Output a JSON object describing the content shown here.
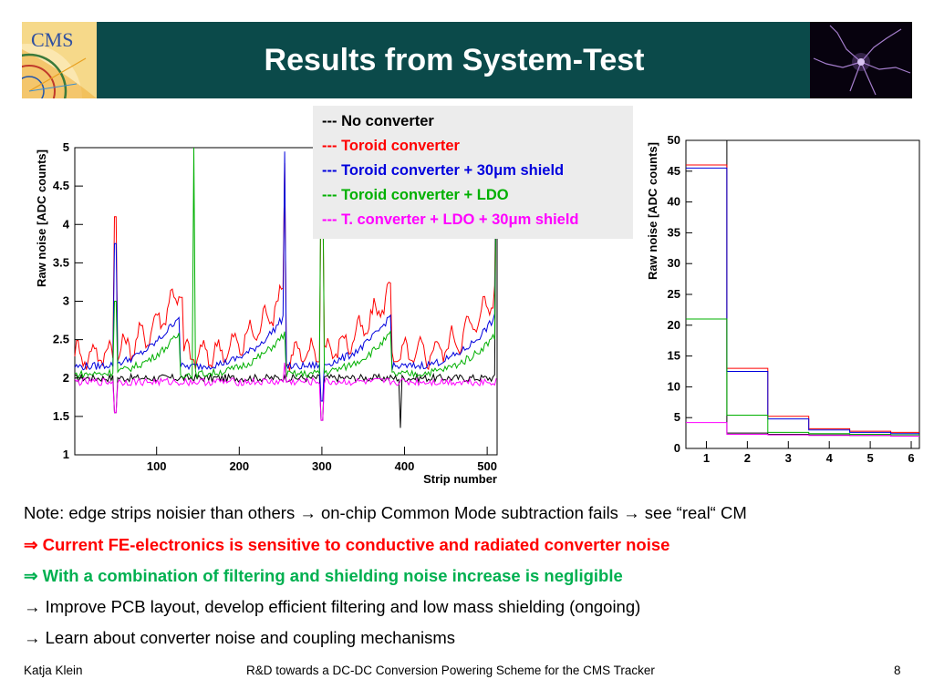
{
  "header": {
    "title": "Results from System-Test",
    "logo_text": "CMS",
    "bar_color": "#0b4a4a"
  },
  "legend": {
    "items": [
      {
        "label": "--- No converter",
        "color": "#000000"
      },
      {
        "label": "--- Toroid converter",
        "color": "#ff0000"
      },
      {
        "label": "--- Toroid converter + 30μm shield",
        "color": "#0000dd"
      },
      {
        "label": "--- Toroid converter + LDO",
        "color": "#00b000"
      },
      {
        "label": "--- T. converter + LDO + 30μm shield",
        "color": "#ff00ff"
      }
    ]
  },
  "chart_data": [
    {
      "type": "line",
      "xlabel": "Strip number",
      "ylabel": "Raw noise [ADC counts]",
      "xlim": [
        1,
        512
      ],
      "ylim": [
        1,
        5
      ],
      "x_ticks": [
        "100",
        "200",
        "300",
        "400",
        "500"
      ],
      "y_ticks": [
        "1",
        "1.5",
        "2",
        "2.5",
        "3",
        "3.5",
        "4",
        "4.5",
        "5"
      ],
      "series": [
        {
          "name": "No converter",
          "color": "#000000",
          "base": 2.0,
          "spikes": [
            [
              50,
              1.55
            ],
            [
              300,
              1.45
            ],
            [
              395,
              1.35
            ],
            [
              512,
              4.9
            ]
          ]
        },
        {
          "name": "Toroid converter",
          "color": "#ff0000",
          "base": 2.3,
          "spikes": [
            [
              50,
              4.1
            ],
            [
              130,
              3.05
            ],
            [
              255,
              4.8
            ],
            [
              300,
              4.5
            ],
            [
              512,
              4.9
            ]
          ]
        },
        {
          "name": "Toroid converter + 30μm shield",
          "color": "#0000dd",
          "base": 2.15,
          "spikes": [
            [
              50,
              3.75
            ],
            [
              255,
              4.95
            ],
            [
              300,
              1.7
            ],
            [
              512,
              4.9
            ]
          ]
        },
        {
          "name": "Toroid converter + LDO",
          "color": "#00b000",
          "base": 2.05,
          "spikes": [
            [
              50,
              3.0
            ],
            [
              145,
              5.0
            ],
            [
              300,
              5.0
            ],
            [
              512,
              4.9
            ]
          ]
        },
        {
          "name": "T. converter + LDO + 30μm shield",
          "color": "#ff00ff",
          "base": 1.95,
          "spikes": [
            [
              50,
              1.55
            ],
            [
              255,
              2.2
            ],
            [
              300,
              1.45
            ]
          ]
        }
      ]
    },
    {
      "type": "line",
      "xlabel": "",
      "ylabel": "Raw noise [ADC counts]",
      "xlim": [
        0.5,
        6.2
      ],
      "ylim": [
        0,
        50
      ],
      "x_ticks": [
        "1",
        "2",
        "3",
        "4",
        "5",
        "6"
      ],
      "y_ticks": [
        "0",
        "5",
        "10",
        "15",
        "20",
        "25",
        "30",
        "35",
        "40",
        "45",
        "50"
      ],
      "series": [
        {
          "name": "No converter",
          "color": "#000000",
          "values": [
            50,
            2.5,
            2.3,
            2.2,
            2.1,
            2.0
          ]
        },
        {
          "name": "Toroid converter",
          "color": "#ff0000",
          "values": [
            46,
            13,
            5.2,
            3.2,
            2.8,
            2.6
          ]
        },
        {
          "name": "Toroid converter + 30μm shield",
          "color": "#0000dd",
          "values": [
            45.5,
            12.5,
            4.8,
            3.0,
            2.6,
            2.4
          ]
        },
        {
          "name": "Toroid converter + LDO",
          "color": "#00b000",
          "values": [
            21,
            5.4,
            2.6,
            2.4,
            2.3,
            2.2
          ]
        },
        {
          "name": "T. converter + LDO + 30μm shield",
          "color": "#ff00ff",
          "values": [
            4.2,
            2.3,
            2.2,
            2.1,
            2.1,
            2.0
          ]
        }
      ]
    }
  ],
  "notes": [
    {
      "text": "Note: edge strips noisier than others  → on-chip Common Mode subtraction fails → see “real“ CM",
      "color": "#000000"
    },
    {
      "text": "⇒ Current FE-electronics is sensitive to conductive and radiated converter noise",
      "color": "#ff0000"
    },
    {
      "text": "⇒ With a combination of filtering and shielding noise increase is negligible",
      "color": "#00b050"
    },
    {
      "text": "→ Improve PCB layout, develop efficient filtering and low mass shielding (ongoing)",
      "color": "#000000"
    },
    {
      "text": "→ Learn about converter noise and coupling mechanisms",
      "color": "#000000"
    }
  ],
  "footer": {
    "author": "Katja Klein",
    "talk_title": "R&D towards a DC-DC Conversion Powering Scheme for the CMS Tracker",
    "page_number": "8"
  }
}
